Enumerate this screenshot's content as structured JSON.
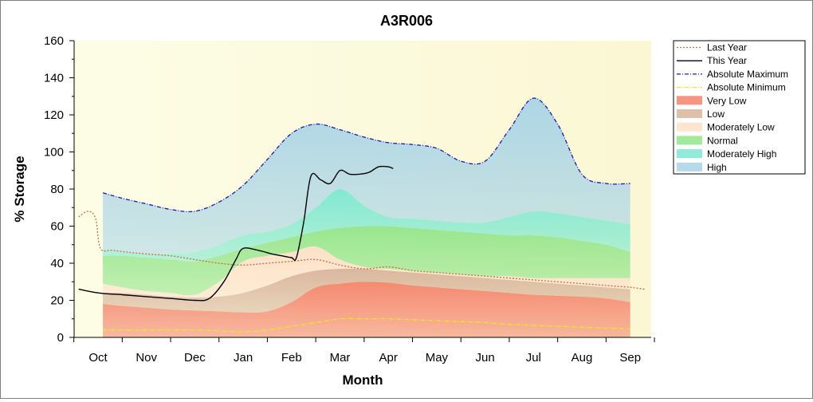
{
  "chart_data": {
    "type": "area",
    "title": "A3R006",
    "xlabel": "Month",
    "ylabel": "% Storage",
    "ylim": [
      0,
      160
    ],
    "yticks": [
      0,
      20,
      40,
      60,
      80,
      100,
      120,
      140,
      160
    ],
    "grid": false,
    "legend_position": "right",
    "categories": [
      "Oct",
      "Nov",
      "Dec",
      "Jan",
      "Feb",
      "Mar",
      "Apr",
      "May",
      "Jun",
      "Jul",
      "Aug",
      "Sep"
    ],
    "band_x": [
      0.1,
      0.5,
      1.0,
      1.5,
      2.0,
      2.5,
      3.0,
      3.5,
      4.0,
      4.5,
      5.0,
      5.5,
      6.0,
      6.5,
      7.0,
      7.5,
      8.0,
      8.5,
      9.0,
      9.5,
      10.0,
      10.5,
      11.0
    ],
    "bands": [
      {
        "name": "Very Low",
        "color": "#f4836b",
        "lower": [
          0,
          0,
          0,
          0,
          0,
          0,
          0,
          0,
          0,
          0,
          0,
          0,
          0,
          0,
          0,
          0,
          0,
          0,
          0,
          0,
          0,
          0,
          0
        ],
        "upper": [
          18,
          17,
          16,
          15,
          14.5,
          14,
          13.5,
          14,
          19,
          27,
          29,
          30,
          29.5,
          28,
          27,
          26,
          25,
          24,
          23,
          22.5,
          22,
          21,
          19
        ]
      },
      {
        "name": "Low",
        "color": "#d8b49a",
        "lower": [
          18,
          17,
          16,
          15,
          14.5,
          14,
          13.5,
          14,
          19,
          27,
          29,
          30,
          29.5,
          28,
          27,
          26,
          25,
          24,
          23,
          22.5,
          22,
          21,
          19
        ],
        "upper": [
          24,
          24,
          23,
          22,
          21.5,
          22,
          24,
          28,
          33,
          36,
          37,
          37,
          36,
          35,
          34,
          33,
          32,
          31,
          30,
          29,
          28,
          27,
          26
        ]
      },
      {
        "name": "Moderately Low",
        "color": "#fde0c8",
        "lower": [
          24,
          24,
          23,
          22,
          21.5,
          22,
          24,
          28,
          33,
          36,
          37,
          37,
          36,
          35,
          34,
          33,
          32,
          31,
          30,
          29,
          28,
          27,
          26
        ],
        "upper": [
          29,
          27,
          25,
          24,
          23,
          30,
          41,
          44,
          46,
          49,
          42,
          38,
          37,
          36,
          35,
          34,
          33,
          33,
          32,
          32,
          32,
          32,
          32
        ]
      },
      {
        "name": "Normal",
        "color": "#93e58a",
        "lower": [
          29,
          27,
          25,
          24,
          23,
          30,
          41,
          44,
          46,
          49,
          42,
          38,
          37,
          36,
          35,
          34,
          33,
          33,
          32,
          32,
          32,
          32,
          32
        ],
        "upper": [
          44,
          44,
          43,
          42,
          41,
          44,
          48,
          51,
          54,
          57,
          59,
          60,
          60,
          59,
          58,
          57,
          56,
          55,
          55,
          54,
          52,
          50,
          46
        ]
      },
      {
        "name": "Moderately High",
        "color": "#7be8d0",
        "lower": [
          44,
          44,
          43,
          42,
          41,
          44,
          48,
          51,
          54,
          57,
          59,
          60,
          60,
          59,
          58,
          57,
          56,
          55,
          55,
          54,
          52,
          50,
          46
        ],
        "upper": [
          48,
          46,
          45,
          45,
          46,
          50,
          55,
          57,
          61,
          70,
          80,
          71,
          65,
          64,
          63,
          62,
          62,
          65,
          68,
          67,
          65,
          63,
          61
        ]
      },
      {
        "name": "High",
        "color": "#a9d4e6",
        "lower": [
          48,
          46,
          45,
          45,
          46,
          50,
          55,
          57,
          61,
          70,
          80,
          71,
          65,
          64,
          63,
          62,
          62,
          65,
          68,
          67,
          65,
          63,
          61
        ],
        "upper": [
          78,
          75,
          72,
          69,
          68,
          73,
          82,
          96,
          110,
          115,
          112,
          108,
          105,
          104,
          102,
          95,
          95,
          112,
          129,
          115,
          88,
          83,
          83
        ]
      }
    ],
    "series": [
      {
        "name": "Last Year",
        "color": "#c07040",
        "style": "dotted",
        "x": [
          -0.4,
          -0.2,
          -0.05,
          0.05,
          0.3,
          0.6,
          1.0,
          1.5,
          2.0,
          2.5,
          3.0,
          3.5,
          4.0,
          4.5,
          5.0,
          5.5,
          6.0,
          6.5,
          7.0,
          7.5,
          8.0,
          8.5,
          9.0,
          9.5,
          10.0,
          10.5,
          11.0,
          11.3
        ],
        "y": [
          65,
          68,
          64,
          48,
          47,
          46,
          45,
          44,
          42,
          40,
          39,
          40,
          41,
          42,
          39,
          37,
          38,
          36,
          35,
          34,
          33,
          32,
          31,
          30,
          29,
          28,
          27,
          26
        ]
      },
      {
        "name": "This Year",
        "color": "#000000",
        "style": "solid",
        "x": [
          -0.4,
          0.0,
          0.5,
          1.0,
          1.5,
          2.0,
          2.3,
          2.6,
          2.85,
          3.0,
          3.3,
          3.6,
          3.8,
          4.0,
          4.1,
          4.25,
          4.4,
          4.6,
          4.8,
          5.0,
          5.2,
          5.4,
          5.6,
          5.8,
          6.0,
          6.1
        ],
        "y": [
          26,
          24,
          23,
          22,
          21,
          20,
          21,
          30,
          42,
          48,
          47,
          45,
          44,
          43,
          43,
          62,
          87,
          85,
          83,
          90,
          88,
          88,
          89,
          92,
          92,
          91
        ]
      },
      {
        "name": "Absolute Maximum",
        "color": "#1a1aa8",
        "style": "dashdot",
        "follows_band": "High"
      },
      {
        "name": "Absolute Minimum",
        "color": "#ecec14",
        "style": "dashdot",
        "x": [
          0.1,
          0.5,
          1.0,
          1.5,
          2.0,
          2.5,
          3.0,
          3.5,
          4.0,
          4.5,
          5.0,
          5.5,
          6.0,
          6.5,
          7.0,
          7.5,
          8.0,
          8.5,
          9.0,
          9.5,
          10.0,
          10.5,
          11.0
        ],
        "y": [
          4,
          4,
          4,
          4,
          4,
          3.5,
          3,
          4,
          6,
          8,
          10,
          10,
          10,
          9.5,
          9,
          8.5,
          8,
          7,
          6.5,
          6,
          5.5,
          5,
          4.5
        ]
      }
    ],
    "legend": [
      "Last Year",
      "This Year",
      "Absolute Maximum",
      "Absolute Minimum",
      "Very Low",
      "Low",
      "Moderately Low",
      "Normal",
      "Moderately High",
      "High"
    ]
  }
}
